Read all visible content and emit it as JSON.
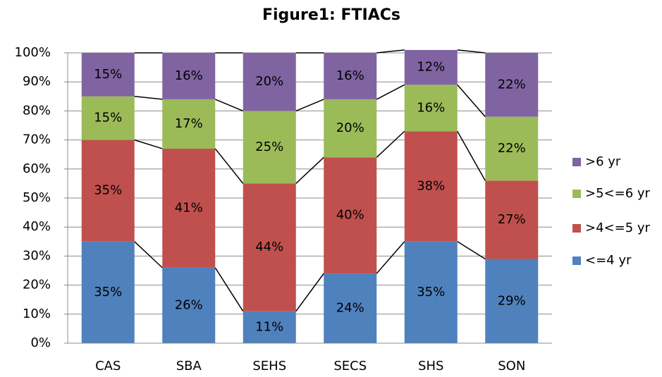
{
  "chart_data": {
    "type": "stacked_bar",
    "title": "Figure1: FTIACs",
    "categories": [
      "CAS",
      "SBA",
      "SEHS",
      "SECS",
      "SHS",
      "SON"
    ],
    "series": [
      {
        "name": "<=4 yr",
        "color": "#4f81bd",
        "values": [
          35,
          26,
          11,
          24,
          35,
          29
        ],
        "value_labels": [
          "35%",
          "26%",
          "11%",
          "24%",
          "35%",
          "29%"
        ]
      },
      {
        "name": ">4<=5 yr",
        "color": "#c0504d",
        "values": [
          35,
          41,
          44,
          40,
          38,
          27
        ],
        "value_labels": [
          "35%",
          "41%",
          "44%",
          "40%",
          "38%",
          "27%"
        ]
      },
      {
        "name": ">5<=6 yr",
        "color": "#9bbb59",
        "values": [
          15,
          17,
          25,
          20,
          16,
          22
        ],
        "value_labels": [
          "15%",
          "17%",
          "25%",
          "20%",
          "16%",
          "22%"
        ]
      },
      {
        "name": ">6 yr",
        "color": "#8064a2",
        "values": [
          15,
          16,
          20,
          16,
          12,
          22
        ],
        "value_labels": [
          "15%",
          "16%",
          "20%",
          "16%",
          "12%",
          "22%"
        ]
      }
    ],
    "ylim": [
      0,
      100
    ],
    "yticks": [
      {
        "value": 0,
        "label": "0%"
      },
      {
        "value": 10,
        "label": "10%"
      },
      {
        "value": 20,
        "label": "20%"
      },
      {
        "value": 30,
        "label": "30%"
      },
      {
        "value": 40,
        "label": "40%"
      },
      {
        "value": 50,
        "label": "50%"
      },
      {
        "value": 60,
        "label": "60%"
      },
      {
        "value": 70,
        "label": "70%"
      },
      {
        "value": 80,
        "label": "80%"
      },
      {
        "value": 90,
        "label": "90%"
      },
      {
        "value": 100,
        "label": "100%"
      }
    ],
    "grid": true,
    "series_lines": true,
    "legend": "right"
  }
}
